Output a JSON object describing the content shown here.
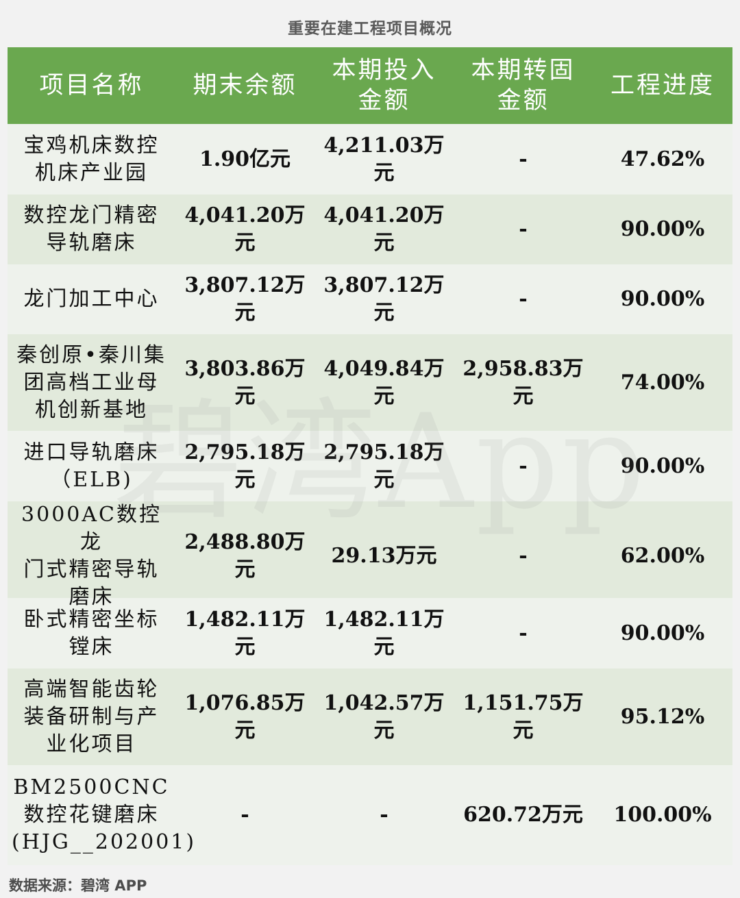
{
  "title": "重要在建工程项目概况",
  "headers": [
    "项目名称",
    "期末余额",
    "本期投入\n金额",
    "本期转固\n金额",
    "工程进度"
  ],
  "rows": [
    {
      "name": "宝鸡机床数控\n机床产业园",
      "balance": "1.90亿元",
      "input": "4,211.03万\n元",
      "transfer": "-",
      "progress": "47.62%"
    },
    {
      "name": "数控龙门精密\n导轨磨床",
      "balance": "4,041.20万\n元",
      "input": "4,041.20万\n元",
      "transfer": "-",
      "progress": "90.00%"
    },
    {
      "name": "龙门加工中心",
      "balance": "3,807.12万\n元",
      "input": "3,807.12万\n元",
      "transfer": "-",
      "progress": "90.00%"
    },
    {
      "name": "秦创原•秦川集\n团高档工业母\n机创新基地",
      "balance": "3,803.86万\n元",
      "input": "4,049.84万\n元",
      "transfer": "2,958.83万\n元",
      "progress": "74.00%"
    },
    {
      "name": "进口导轨磨床\n（ELB)",
      "balance": "2,795.18万\n元",
      "input": "2,795.18万\n元",
      "transfer": "-",
      "progress": "90.00%"
    },
    {
      "name": "3000AC数控龙\n门式精密导轨\n磨床",
      "balance": "2,488.80万\n元",
      "input": "29.13万元",
      "transfer": "-",
      "progress": "62.00%"
    },
    {
      "name": "卧式精密坐标\n镗床",
      "balance": "1,482.11万\n元",
      "input": "1,482.11万\n元",
      "transfer": "-",
      "progress": "90.00%"
    },
    {
      "name": "高端智能齿轮\n装备研制与产\n业化项目",
      "balance": "1,076.85万\n元",
      "input": "1,042.57万\n元",
      "transfer": "1,151.75万\n元",
      "progress": "95.12%"
    },
    {
      "name": "BM2500CNC\n数控花键磨床\n(HJG__202001)",
      "balance": "-",
      "input": "-",
      "transfer": "620.72万元",
      "progress": "100.00%"
    }
  ],
  "watermark": "碧湾App",
  "source": "数据来源：碧湾 APP",
  "colors": {
    "header_bg": "#6aa84f",
    "row_light": "#eef2ec",
    "row_dark": "#e2eadc",
    "page_bg": "#f2f2f2"
  }
}
